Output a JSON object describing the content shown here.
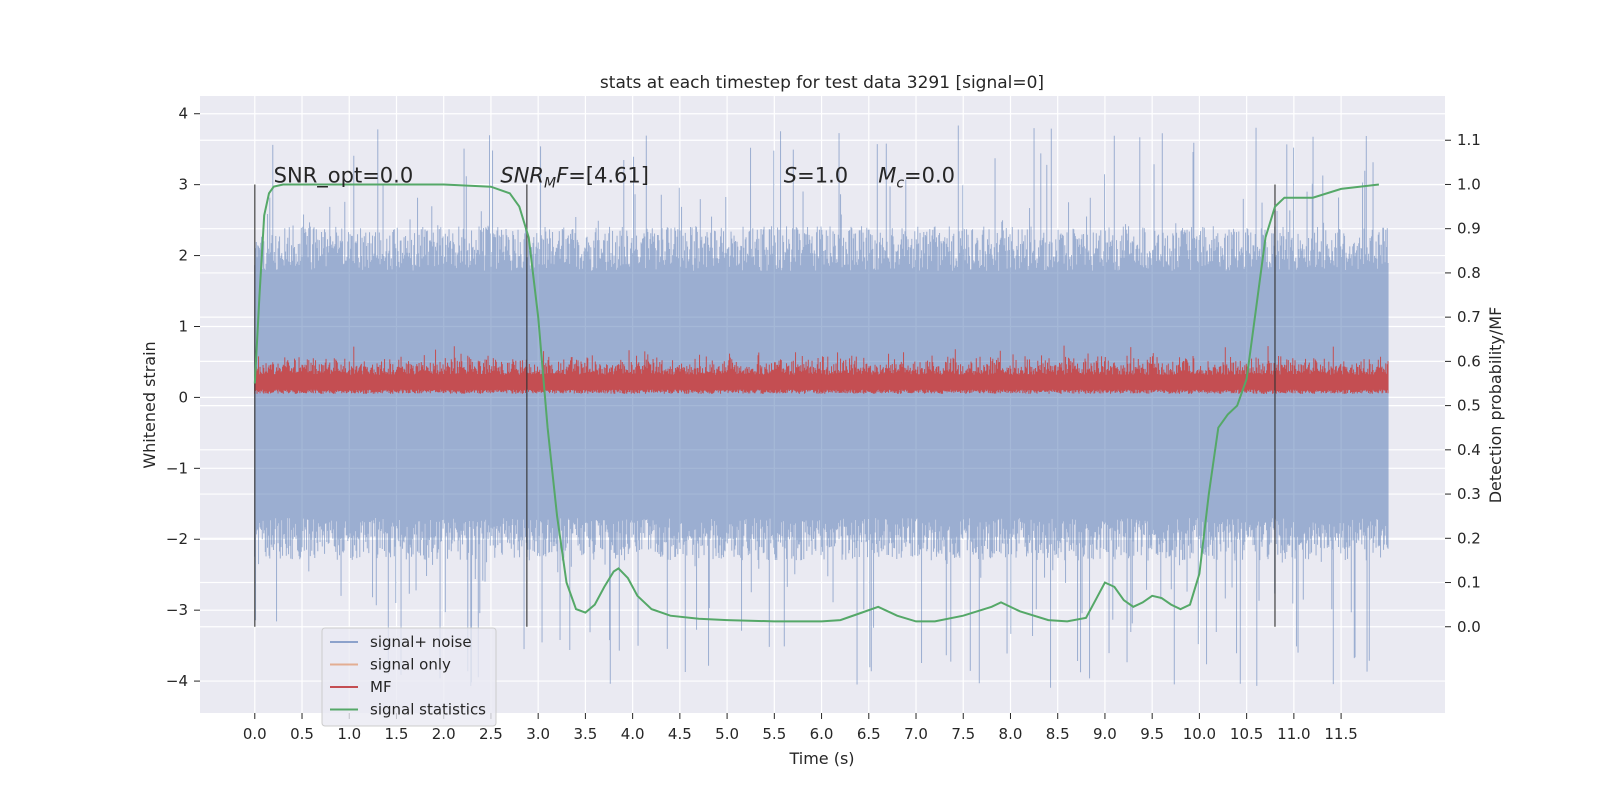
{
  "chart_data": {
    "type": "line",
    "title": "stats at each timestep for test data 3291 [signal=0]",
    "xlabel": "Time (s)",
    "ylabel": "Whitened strain",
    "ylabel_right": "Detection probability/MF",
    "xlim": [
      -0.58,
      12.6
    ],
    "ylim": [
      -4.45,
      4.25
    ],
    "ylim_right": [
      -0.195,
      1.2
    ],
    "x_ticks": [
      "0.0",
      "0.5",
      "1.0",
      "1.5",
      "2.0",
      "2.5",
      "3.0",
      "3.5",
      "4.0",
      "4.5",
      "5.0",
      "5.5",
      "6.0",
      "6.5",
      "7.0",
      "7.5",
      "8.0",
      "8.5",
      "9.0",
      "9.5",
      "10.0",
      "10.5",
      "11.0",
      "11.5"
    ],
    "y_ticks": [
      "4",
      "3",
      "2",
      "1",
      "0",
      "−1",
      "−2",
      "−3",
      "−4"
    ],
    "y_ticks_right": [
      "1.1",
      "1.0",
      "0.9",
      "0.8",
      "0.7",
      "0.6",
      "0.5",
      "0.4",
      "0.3",
      "0.2",
      "0.1",
      "0.0"
    ],
    "grid": true,
    "legend_position": "lower-left",
    "series": [
      {
        "name": "signal+ noise",
        "color": "#4c72b0",
        "style": "noise band",
        "x_range": [
          0.0,
          12.0
        ],
        "typical_range": [
          -2.0,
          2.1
        ],
        "peak_range": [
          -4.1,
          3.85
        ]
      },
      {
        "name": "signal only",
        "color": "#dd8452",
        "values": []
      },
      {
        "name": "MF",
        "color": "#c44e52",
        "style": "noise band",
        "x_range": [
          0.0,
          12.0
        ],
        "typical_range": [
          0.05,
          0.55
        ],
        "peak_max": 1.0
      },
      {
        "name": "signal statistics",
        "color": "#55a868",
        "axis": "right",
        "x": [
          0.0,
          0.05,
          0.1,
          0.15,
          0.2,
          0.3,
          0.5,
          1.0,
          1.5,
          2.0,
          2.5,
          2.7,
          2.8,
          2.9,
          3.0,
          3.1,
          3.2,
          3.3,
          3.4,
          3.5,
          3.6,
          3.7,
          3.8,
          3.85,
          3.95,
          4.05,
          4.2,
          4.4,
          4.7,
          5.0,
          5.5,
          6.0,
          6.2,
          6.4,
          6.6,
          6.8,
          7.0,
          7.2,
          7.5,
          7.8,
          7.9,
          8.1,
          8.4,
          8.6,
          8.8,
          8.9,
          9.0,
          9.1,
          9.2,
          9.3,
          9.4,
          9.5,
          9.6,
          9.7,
          9.8,
          9.9,
          10.0,
          10.1,
          10.2,
          10.3,
          10.4,
          10.5,
          10.6,
          10.7,
          10.8,
          10.9,
          11.0,
          11.2,
          11.5,
          11.9
        ],
        "values": [
          0.55,
          0.75,
          0.93,
          0.98,
          0.995,
          1.0,
          1.0,
          1.0,
          1.0,
          1.0,
          0.995,
          0.98,
          0.95,
          0.88,
          0.7,
          0.45,
          0.25,
          0.1,
          0.04,
          0.032,
          0.05,
          0.09,
          0.125,
          0.132,
          0.11,
          0.07,
          0.04,
          0.025,
          0.018,
          0.015,
          0.012,
          0.012,
          0.015,
          0.03,
          0.045,
          0.025,
          0.012,
          0.012,
          0.025,
          0.045,
          0.055,
          0.035,
          0.015,
          0.012,
          0.02,
          0.06,
          0.1,
          0.09,
          0.06,
          0.045,
          0.055,
          0.07,
          0.065,
          0.05,
          0.04,
          0.05,
          0.12,
          0.3,
          0.45,
          0.48,
          0.5,
          0.56,
          0.72,
          0.88,
          0.95,
          0.97,
          0.97,
          0.97,
          0.99,
          1.0
        ]
      }
    ],
    "vlines": [
      0.0,
      2.88,
      10.8
    ],
    "annotations": [
      {
        "text": "SNR_opt=0.0",
        "x": 0.2,
        "y": 3.0
      },
      {
        "text": "=[4.61]",
        "math_prefix": "SNR",
        "math_sub": "M",
        "math_tail": "F",
        "x": 2.6,
        "y": 3.0
      },
      {
        "text": "=1.0",
        "math_prefix": "S",
        "x": 5.6,
        "y": 3.0
      },
      {
        "text": "=0.0",
        "math_prefix": "M",
        "math_sub": "c",
        "x": 6.6,
        "y": 3.0
      }
    ]
  }
}
